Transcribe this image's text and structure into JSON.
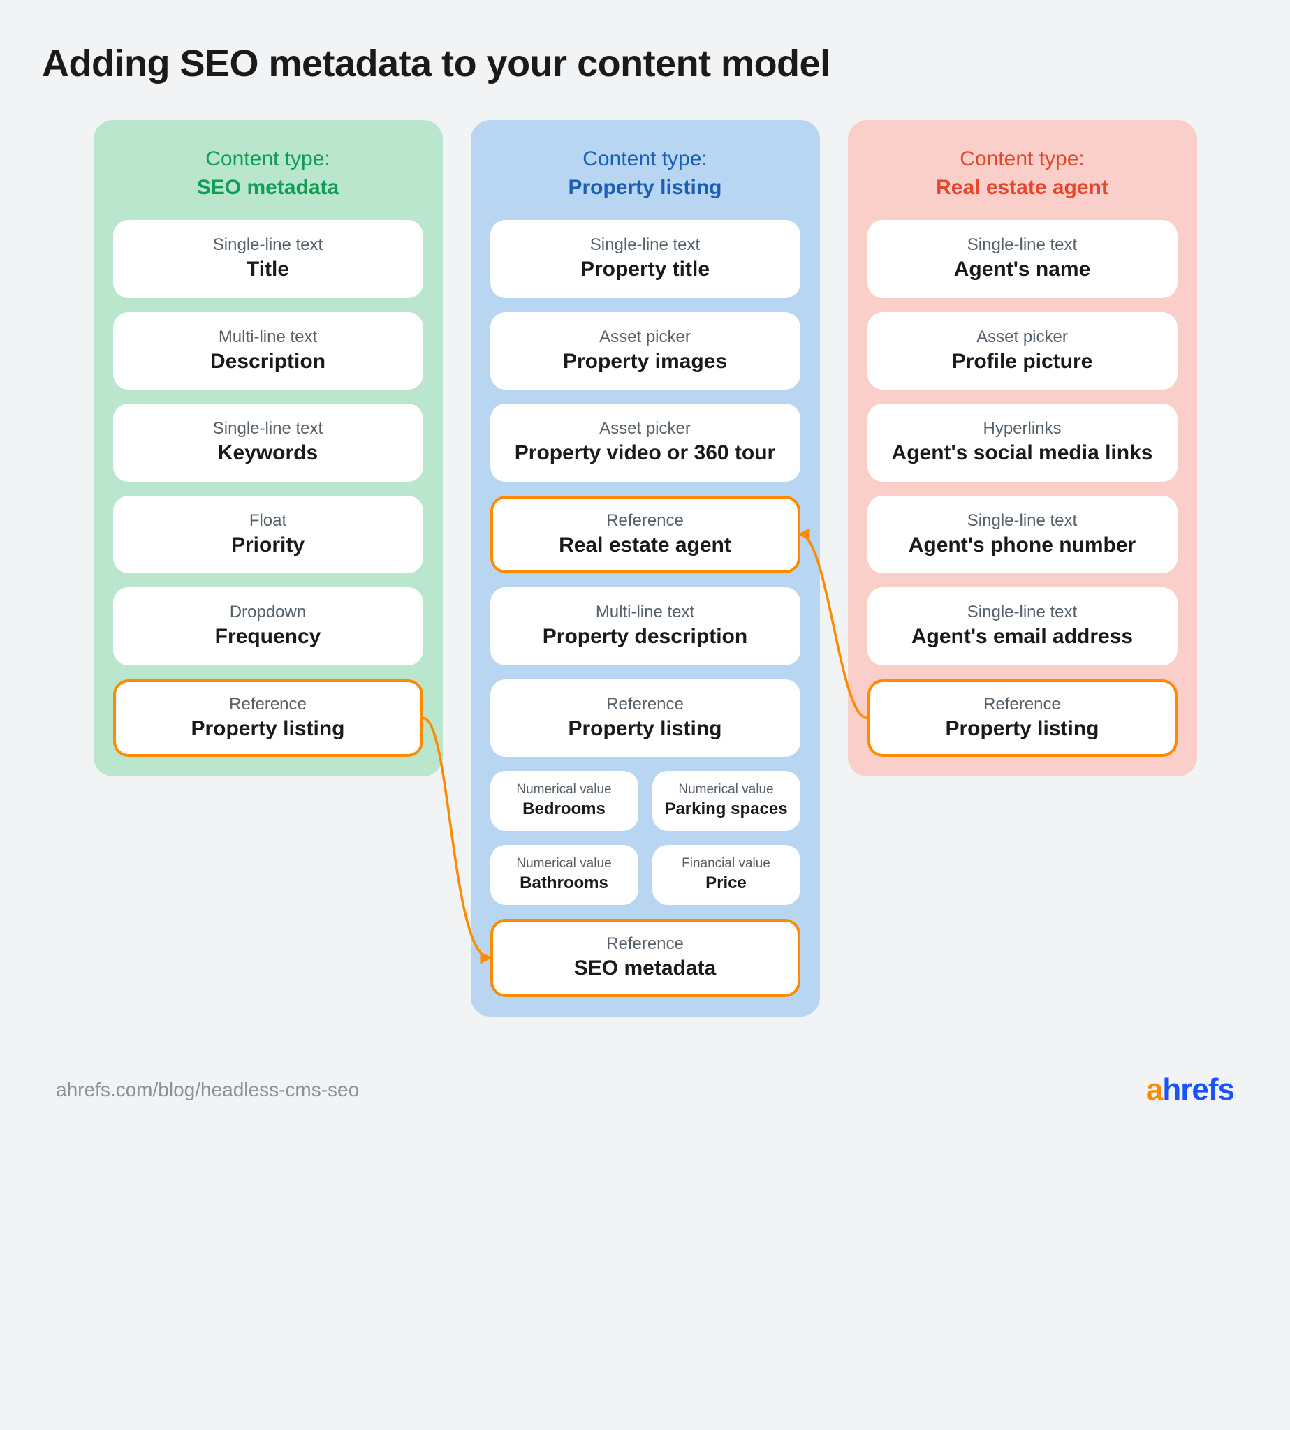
{
  "title": "Adding SEO metadata to your content model",
  "columns": [
    {
      "header_label": "Content type:",
      "header_name": "SEO metadata",
      "bg_color": "#b9e6cc",
      "header_color": "#0f9d58",
      "fields": [
        {
          "type": "Single-line text",
          "value": "Title",
          "ref": false
        },
        {
          "type": "Multi-line text",
          "value": "Description",
          "ref": false
        },
        {
          "type": "Single-line text",
          "value": "Keywords",
          "ref": false
        },
        {
          "type": "Float",
          "value": "Priority",
          "ref": false
        },
        {
          "type": "Dropdown",
          "value": "Frequency",
          "ref": false
        },
        {
          "type": "Reference",
          "value": "Property listing",
          "ref": true
        }
      ]
    },
    {
      "header_label": "Content type:",
      "header_name": "Property listing",
      "bg_color": "#b8d5f2",
      "header_color": "#1a5fb4",
      "fields": [
        {
          "type": "Single-line text",
          "value": "Property title",
          "ref": false
        },
        {
          "type": "Asset picker",
          "value": "Property images",
          "ref": false
        },
        {
          "type": "Asset picker",
          "value": "Property video or 360 tour",
          "ref": false
        },
        {
          "type": "Reference",
          "value": "Real estate agent",
          "ref": true
        },
        {
          "type": "Multi-line text",
          "value": "Property description",
          "ref": false
        },
        {
          "type": "Reference",
          "value": "Property listing",
          "ref": false
        }
      ],
      "pairs": [
        [
          {
            "type": "Numerical value",
            "value": "Bedrooms"
          },
          {
            "type": "Numerical value",
            "value": "Parking spaces"
          }
        ],
        [
          {
            "type": "Numerical value",
            "value": "Bathrooms"
          },
          {
            "type": "Financial value",
            "value": "Price"
          }
        ]
      ],
      "last_ref": {
        "type": "Reference",
        "value": "SEO metadata",
        "ref": true
      }
    },
    {
      "header_label": "Content type:",
      "header_name": "Real estate agent",
      "bg_color": "#fbcfc9",
      "header_color": "#e8462b",
      "fields": [
        {
          "type": "Single-line text",
          "value": "Agent's name",
          "ref": false
        },
        {
          "type": "Asset picker",
          "value": "Profile picture",
          "ref": false
        },
        {
          "type": "Hyperlinks",
          "value": "Agent's social media links",
          "ref": false
        },
        {
          "type": "Single-line text",
          "value": "Agent's phone number",
          "ref": false
        },
        {
          "type": "Single-line text",
          "value": "Agent's email address",
          "ref": false
        },
        {
          "type": "Reference",
          "value": "Property listing",
          "ref": true
        }
      ]
    }
  ],
  "connectors": {
    "color": "#ff8a00",
    "stroke_width": 3.5
  },
  "footer": {
    "url": "ahrefs.com/blog/headless-cms-seo",
    "logo_a": "a",
    "logo_rest": "hrefs"
  },
  "styling": {
    "bg": "#f1f3f5",
    "card_bg": "#ffffff",
    "card_radius": 22,
    "column_radius": 28,
    "ref_border": "#ff8a00",
    "title_color": "#1a1a1a",
    "type_color": "#56606a",
    "value_color": "#1a1a1a"
  }
}
